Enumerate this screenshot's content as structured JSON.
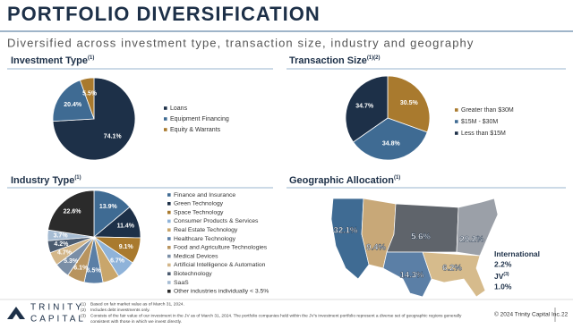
{
  "header": {
    "title": "PORTFOLIO DIVERSIFICATION",
    "subtitle": "Diversified across investment type, transaction size, industry and geography"
  },
  "chart_data": [
    {
      "type": "pie",
      "title": "Investment Type",
      "title_note": "(1)",
      "categories": [
        "Loans",
        "Equipment Financing",
        "Equity & Warrants"
      ],
      "values": [
        74.1,
        20.4,
        5.5
      ],
      "value_labels": [
        "74.1%",
        "20.4%",
        "5.5%"
      ],
      "colors": [
        "#1d3048",
        "#3f6b93",
        "#a97a2e"
      ]
    },
    {
      "type": "pie",
      "title": "Transaction Size",
      "title_note": "(1)(2)",
      "categories": [
        "Greater than $30M",
        "$15M - $30M",
        "Less than $15M"
      ],
      "values": [
        30.5,
        34.8,
        34.7
      ],
      "value_labels": [
        "30.5%",
        "34.8%",
        "34.7%"
      ],
      "colors": [
        "#a97a2e",
        "#3f6b93",
        "#1d3048"
      ]
    },
    {
      "type": "pie",
      "title": "Industry Type",
      "title_note": "(1)",
      "categories": [
        "Finance and Insurance",
        "Green Technology",
        "Space Technology",
        "Consumer Products & Services",
        "Real Estate Technology",
        "Healthcare Technology",
        "Food and Agriculture Technologies",
        "Medical Devices",
        "Artificial Intelligence & Automation",
        "Biotechnology",
        "SaaS",
        "Other industries individually < 3.5%"
      ],
      "values": [
        13.9,
        11.4,
        9.1,
        6.7,
        5.8,
        6.5,
        6.1,
        5.3,
        4.7,
        4.2,
        3.7,
        22.6
      ],
      "value_labels": [
        "13.9%",
        "11.4%",
        "9.1%",
        "6.7%",
        null,
        "6.5%",
        "6.1%",
        "5.3%",
        "4.7%",
        "4.2%",
        "3.7%",
        "22.6%"
      ],
      "colors": [
        "#3f6b93",
        "#1d3048",
        "#a97a2e",
        "#8fb3d9",
        "#c9a66b",
        "#5b7fa6",
        "#b8945f",
        "#7a8ea6",
        "#d3b689",
        "#4b5b70",
        "#a6bcd3",
        "#2b2b2b"
      ]
    },
    {
      "type": "map",
      "title": "Geographic Allocation",
      "title_note": "(1)",
      "values": [
        32.1,
        9.4,
        5.6,
        29.2,
        14.3,
        6.2
      ],
      "value_labels": [
        "32.1%",
        "9.4%",
        "5.6%",
        "29.2%",
        "14.3%",
        "6.2%"
      ],
      "colors": [
        "#3f6b93",
        "#c8a878",
        "#5f646b",
        "#9ba0a8",
        "#5b7fa6",
        "#d6bb8c"
      ],
      "extra": [
        {
          "name": "International",
          "value": 2.2,
          "label": "2.2%"
        },
        {
          "name": "JV",
          "note": "(3)",
          "value": 1.0,
          "label": "1.0%"
        }
      ]
    }
  ],
  "footer": {
    "logo": [
      "TRINITY",
      "CAPITAL"
    ],
    "footnotes": [
      {
        "marker": "(1)",
        "text": "Based on fair market value as of March 31, 2024."
      },
      {
        "marker": "(2)",
        "text": "Includes debt investments only."
      },
      {
        "marker": "(3)",
        "text": "Consists of the fair value of our investment in the JV as of March 31, 2024. The portfolio companies held within the JV's investment portfolio represent a diverse set of geographic regions generally"
      },
      {
        "marker": "",
        "text": "consistent with those in which we invest directly."
      }
    ],
    "copyright": "© 2024 Trinity Capital Inc.",
    "page": "22"
  }
}
